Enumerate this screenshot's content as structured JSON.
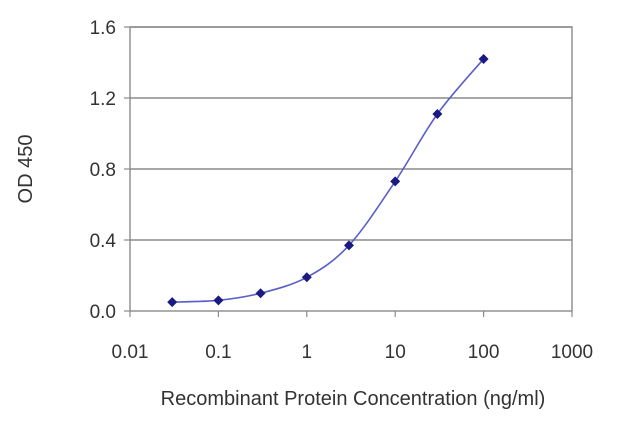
{
  "chart_data": {
    "type": "scatter",
    "title": "",
    "xlabel": "Recombinant Protein Concentration (ng/ml)",
    "ylabel": "OD 450",
    "x_scale": "log",
    "xlim": [
      0.01,
      1000
    ],
    "ylim": [
      0,
      1.6
    ],
    "x_ticks": [
      "0.01",
      "0.1",
      "1",
      "10",
      "100",
      "1000"
    ],
    "y_ticks": [
      "0.0",
      "0.4",
      "0.8",
      "1.2",
      "1.6"
    ],
    "grid": "horizontal",
    "legend": "none",
    "series": [
      {
        "x": [
          0.03,
          0.1,
          0.3,
          1,
          3,
          10,
          30,
          100
        ],
        "y": [
          0.05,
          0.06,
          0.1,
          0.19,
          0.37,
          0.73,
          1.11,
          1.42
        ],
        "marker": "diamond",
        "color": "#1a1a80",
        "line_color": "#5a5fc8"
      }
    ]
  }
}
